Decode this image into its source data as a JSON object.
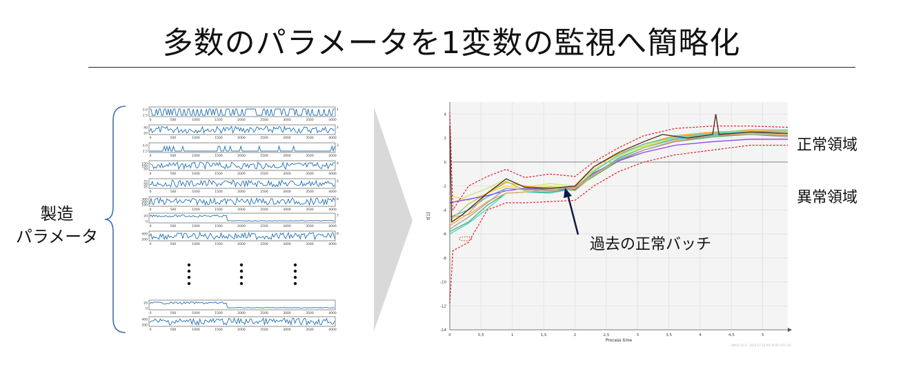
{
  "title": "多数のパラメータを1変数の監視へ簡略化",
  "left": {
    "label_line1": "製造",
    "label_line2": "パラメータ",
    "x_ticks": [
      "0",
      "500",
      "1000",
      "1500",
      "2000",
      "2500",
      "3000",
      "3500",
      "4000"
    ],
    "rows": [
      {
        "index": "1",
        "y_ticks": [
          "5.0",
          "2.5"
        ],
        "style": "bars"
      },
      {
        "index": "2",
        "y_ticks": [
          "40",
          "20"
        ],
        "style": "noisy"
      },
      {
        "index": "3",
        "y_ticks": [
          "5.0",
          "2.5"
        ],
        "style": "spikes"
      },
      {
        "index": "4",
        "y_ticks": [
          "150",
          "100",
          "50"
        ],
        "style": "noisy"
      },
      {
        "index": "5",
        "y_ticks": [
          "75",
          "50",
          "25"
        ],
        "style": "noisy"
      },
      {
        "index": "6",
        "y_ticks": [
          "300",
          "200",
          "100"
        ],
        "style": "noisy"
      },
      {
        "index": "7",
        "y_ticks": [
          "20",
          "0"
        ],
        "style": "step"
      },
      {
        "index": "8",
        "y_ticks": [
          "400",
          "200"
        ],
        "style": "noisy"
      },
      {
        "index": "",
        "y_ticks": [
          "20",
          "0"
        ],
        "style": "step"
      },
      {
        "index": "",
        "y_ticks": [
          "400",
          "200"
        ],
        "style": "noisy"
      }
    ]
  },
  "chart": {
    "label_normal": "正常領域",
    "label_abnormal": "異常領域",
    "annotation": "過去の正常バッチ",
    "xlabel": "Process time",
    "ylabel": "t[1]",
    "x_ticks": [
      "0",
      "0,5",
      "1",
      "1,5",
      "2",
      "2,5",
      "3",
      "3,5",
      "4",
      "4,5",
      "5"
    ],
    "y_ticks": [
      "4",
      "2",
      "0",
      "-2",
      "-4",
      "-6",
      "-8",
      "-10",
      "-12",
      "-14"
    ],
    "footer": "SIMCA 16.0 - 2019-07-18 09:39:00 (UTC+9)",
    "colors": {
      "limit": "#e02020",
      "accent": "#1a1a6e",
      "arrow": "#0d1a4a"
    }
  },
  "chart_data": {
    "type": "line",
    "title": "",
    "xlabel": "Process time",
    "ylabel": "t[1]",
    "xlim": [
      0,
      5.4
    ],
    "ylim": [
      -14,
      5
    ],
    "series": [
      {
        "values": [
          [
            0,
            -2.8
          ],
          [
            0.3,
            -3.2
          ],
          [
            0.6,
            -2.6
          ],
          [
            0.9,
            -2.0
          ],
          [
            1.2,
            -2.2
          ],
          [
            1.6,
            -2.0
          ],
          [
            2.0,
            -2.2
          ],
          [
            2.3,
            -0.7
          ],
          [
            2.7,
            0.6
          ],
          [
            3.1,
            1.3
          ],
          [
            3.6,
            2.0
          ],
          [
            4.2,
            2.3
          ],
          [
            4.8,
            2.4
          ],
          [
            5.4,
            2.4
          ]
        ]
      },
      {
        "values": [
          [
            0,
            -3.5
          ],
          [
            0.3,
            -2.8
          ],
          [
            0.6,
            -2.2
          ],
          [
            0.9,
            -1.4
          ],
          [
            1.2,
            -2.1
          ],
          [
            1.6,
            -1.8
          ],
          [
            2.0,
            -2.0
          ],
          [
            2.3,
            -0.6
          ],
          [
            2.7,
            0.5
          ],
          [
            3.1,
            1.4
          ],
          [
            3.6,
            2.1
          ],
          [
            4.2,
            2.5
          ],
          [
            4.8,
            2.6
          ],
          [
            5.4,
            2.5
          ]
        ]
      },
      {
        "values": [
          [
            0,
            -4.6
          ],
          [
            0.3,
            -4.0
          ],
          [
            0.6,
            -2.9
          ],
          [
            0.9,
            -2.2
          ],
          [
            1.2,
            -2.3
          ],
          [
            1.6,
            -2.1
          ],
          [
            2.0,
            -2.3
          ],
          [
            2.3,
            -1.0
          ],
          [
            2.7,
            0.3
          ],
          [
            3.1,
            1.2
          ],
          [
            3.6,
            1.9
          ],
          [
            4.2,
            2.3
          ],
          [
            4.8,
            2.5
          ],
          [
            5.4,
            2.3
          ]
        ]
      },
      {
        "values": [
          [
            0,
            -5.8
          ],
          [
            0.3,
            -5.0
          ],
          [
            0.6,
            -3.6
          ],
          [
            0.9,
            -2.6
          ],
          [
            1.2,
            -2.5
          ],
          [
            1.6,
            -2.5
          ],
          [
            2.0,
            -2.2
          ],
          [
            2.3,
            -1.2
          ],
          [
            2.7,
            0.1
          ],
          [
            3.1,
            1.0
          ],
          [
            3.6,
            1.7
          ],
          [
            4.2,
            2.1
          ],
          [
            4.8,
            2.3
          ],
          [
            5.4,
            2.2
          ]
        ]
      },
      {
        "values": [
          [
            0,
            -5.3
          ],
          [
            0.3,
            -4.3
          ],
          [
            0.6,
            -2.6
          ],
          [
            0.9,
            -1.7
          ],
          [
            1.2,
            -2.0
          ],
          [
            1.6,
            -2.2
          ],
          [
            2.0,
            -2.1
          ],
          [
            2.3,
            -0.4
          ],
          [
            2.7,
            0.7
          ],
          [
            3.1,
            1.5
          ],
          [
            3.6,
            2.2
          ],
          [
            4.2,
            2.5
          ],
          [
            4.8,
            2.6
          ],
          [
            5.4,
            2.6
          ]
        ]
      },
      {
        "values": [
          [
            0,
            -4.9
          ],
          [
            0.3,
            -3.5
          ],
          [
            0.6,
            -2.6
          ],
          [
            0.9,
            -1.6
          ],
          [
            1.2,
            -2.4
          ],
          [
            1.6,
            -2.1
          ],
          [
            2.0,
            -2.4
          ],
          [
            2.3,
            -1.1
          ],
          [
            2.7,
            0.4
          ],
          [
            3.1,
            1.2
          ],
          [
            3.6,
            2.0
          ],
          [
            4.2,
            2.4
          ],
          [
            4.8,
            2.7
          ],
          [
            5.4,
            2.7
          ]
        ]
      },
      {
        "values": [
          [
            0,
            -3.4
          ],
          [
            0.3,
            -3.1
          ],
          [
            0.6,
            -2.8
          ],
          [
            0.9,
            -2.4
          ],
          [
            1.2,
            -2.2
          ],
          [
            1.6,
            -2.3
          ],
          [
            2.0,
            -2.3
          ],
          [
            2.3,
            -0.9
          ],
          [
            2.7,
            0.1
          ],
          [
            3.1,
            0.8
          ],
          [
            3.6,
            1.4
          ],
          [
            4.2,
            1.7
          ],
          [
            4.8,
            1.9
          ],
          [
            5.4,
            1.9
          ]
        ]
      },
      {
        "values": [
          [
            0,
            -6.0
          ],
          [
            0.3,
            -5.1
          ],
          [
            0.6,
            -3.9
          ],
          [
            0.9,
            -2.6
          ],
          [
            1.2,
            -2.5
          ],
          [
            1.6,
            -2.6
          ],
          [
            2.0,
            -2.2
          ],
          [
            2.3,
            -0.8
          ],
          [
            2.7,
            0.6
          ],
          [
            3.1,
            1.5
          ],
          [
            3.6,
            2.1
          ],
          [
            4.2,
            2.4
          ],
          [
            4.8,
            2.5
          ],
          [
            5.4,
            2.6
          ]
        ]
      },
      {
        "values": [
          [
            0,
            -4.6
          ],
          [
            0.3,
            -4.4
          ],
          [
            0.6,
            -3.3
          ],
          [
            0.9,
            -2.6
          ],
          [
            1.2,
            -2.5
          ],
          [
            1.6,
            -2.3
          ],
          [
            2.0,
            -2.2
          ],
          [
            2.3,
            -1.1
          ],
          [
            2.7,
            0.2
          ],
          [
            3.1,
            1.0
          ],
          [
            3.6,
            1.8
          ],
          [
            4.2,
            2.2
          ],
          [
            4.8,
            2.4
          ],
          [
            5.4,
            2.3
          ]
        ]
      },
      {
        "values": [
          [
            0,
            -5.6
          ],
          [
            0.3,
            -4.6
          ],
          [
            0.6,
            -3.4
          ],
          [
            0.9,
            -2.2
          ],
          [
            1.2,
            -2.3
          ],
          [
            1.6,
            -2.4
          ],
          [
            2.0,
            -2.1
          ],
          [
            2.3,
            -1.0
          ],
          [
            2.7,
            0.2
          ],
          [
            3.1,
            1.0
          ],
          [
            3.6,
            1.7
          ],
          [
            4.2,
            2.2
          ],
          [
            4.8,
            2.3
          ],
          [
            5.4,
            2.1
          ]
        ]
      },
      {
        "values": [
          [
            0,
            3.0
          ],
          [
            0.03,
            -5.0
          ],
          [
            0.2,
            -4.4
          ],
          [
            0.6,
            -2.6
          ],
          [
            0.9,
            -1.4
          ],
          [
            1.2,
            -2.1
          ],
          [
            1.6,
            -2.2
          ],
          [
            2.0,
            -2.0
          ],
          [
            2.3,
            -0.4
          ],
          [
            2.7,
            0.8
          ],
          [
            3.1,
            1.7
          ],
          [
            3.4,
            2.3
          ],
          [
            3.8,
            2.0
          ],
          [
            4.2,
            2.3
          ],
          [
            4.25,
            4.0
          ],
          [
            4.3,
            2.3
          ],
          [
            4.8,
            2.5
          ],
          [
            5.4,
            2.4
          ]
        ]
      }
    ],
    "limits": {
      "upper": [
        [
          0,
          4.2
        ],
        [
          0.05,
          -4.0
        ],
        [
          0.3,
          -2.0
        ],
        [
          0.6,
          -1.2
        ],
        [
          0.9,
          -0.6
        ],
        [
          1.2,
          -1.3
        ],
        [
          1.6,
          -1.0
        ],
        [
          2.0,
          -1.2
        ],
        [
          2.3,
          0.0
        ],
        [
          2.7,
          1.2
        ],
        [
          3.1,
          2.2
        ],
        [
          3.6,
          2.8
        ],
        [
          4.2,
          3.0
        ],
        [
          4.8,
          3.0
        ],
        [
          5.4,
          2.9
        ]
      ],
      "lower": [
        [
          0,
          -11.8
        ],
        [
          0.05,
          -7.4
        ],
        [
          0.3,
          -6.7
        ],
        [
          0.6,
          -4.0
        ],
        [
          0.9,
          -3.4
        ],
        [
          1.2,
          -3.4
        ],
        [
          1.6,
          -3.3
        ],
        [
          2.0,
          -3.2
        ],
        [
          2.3,
          -2.0
        ],
        [
          2.7,
          -0.8
        ],
        [
          3.1,
          0.0
        ],
        [
          3.6,
          0.6
        ],
        [
          4.2,
          1.0
        ],
        [
          4.8,
          1.4
        ],
        [
          5.4,
          1.4
        ]
      ]
    }
  }
}
